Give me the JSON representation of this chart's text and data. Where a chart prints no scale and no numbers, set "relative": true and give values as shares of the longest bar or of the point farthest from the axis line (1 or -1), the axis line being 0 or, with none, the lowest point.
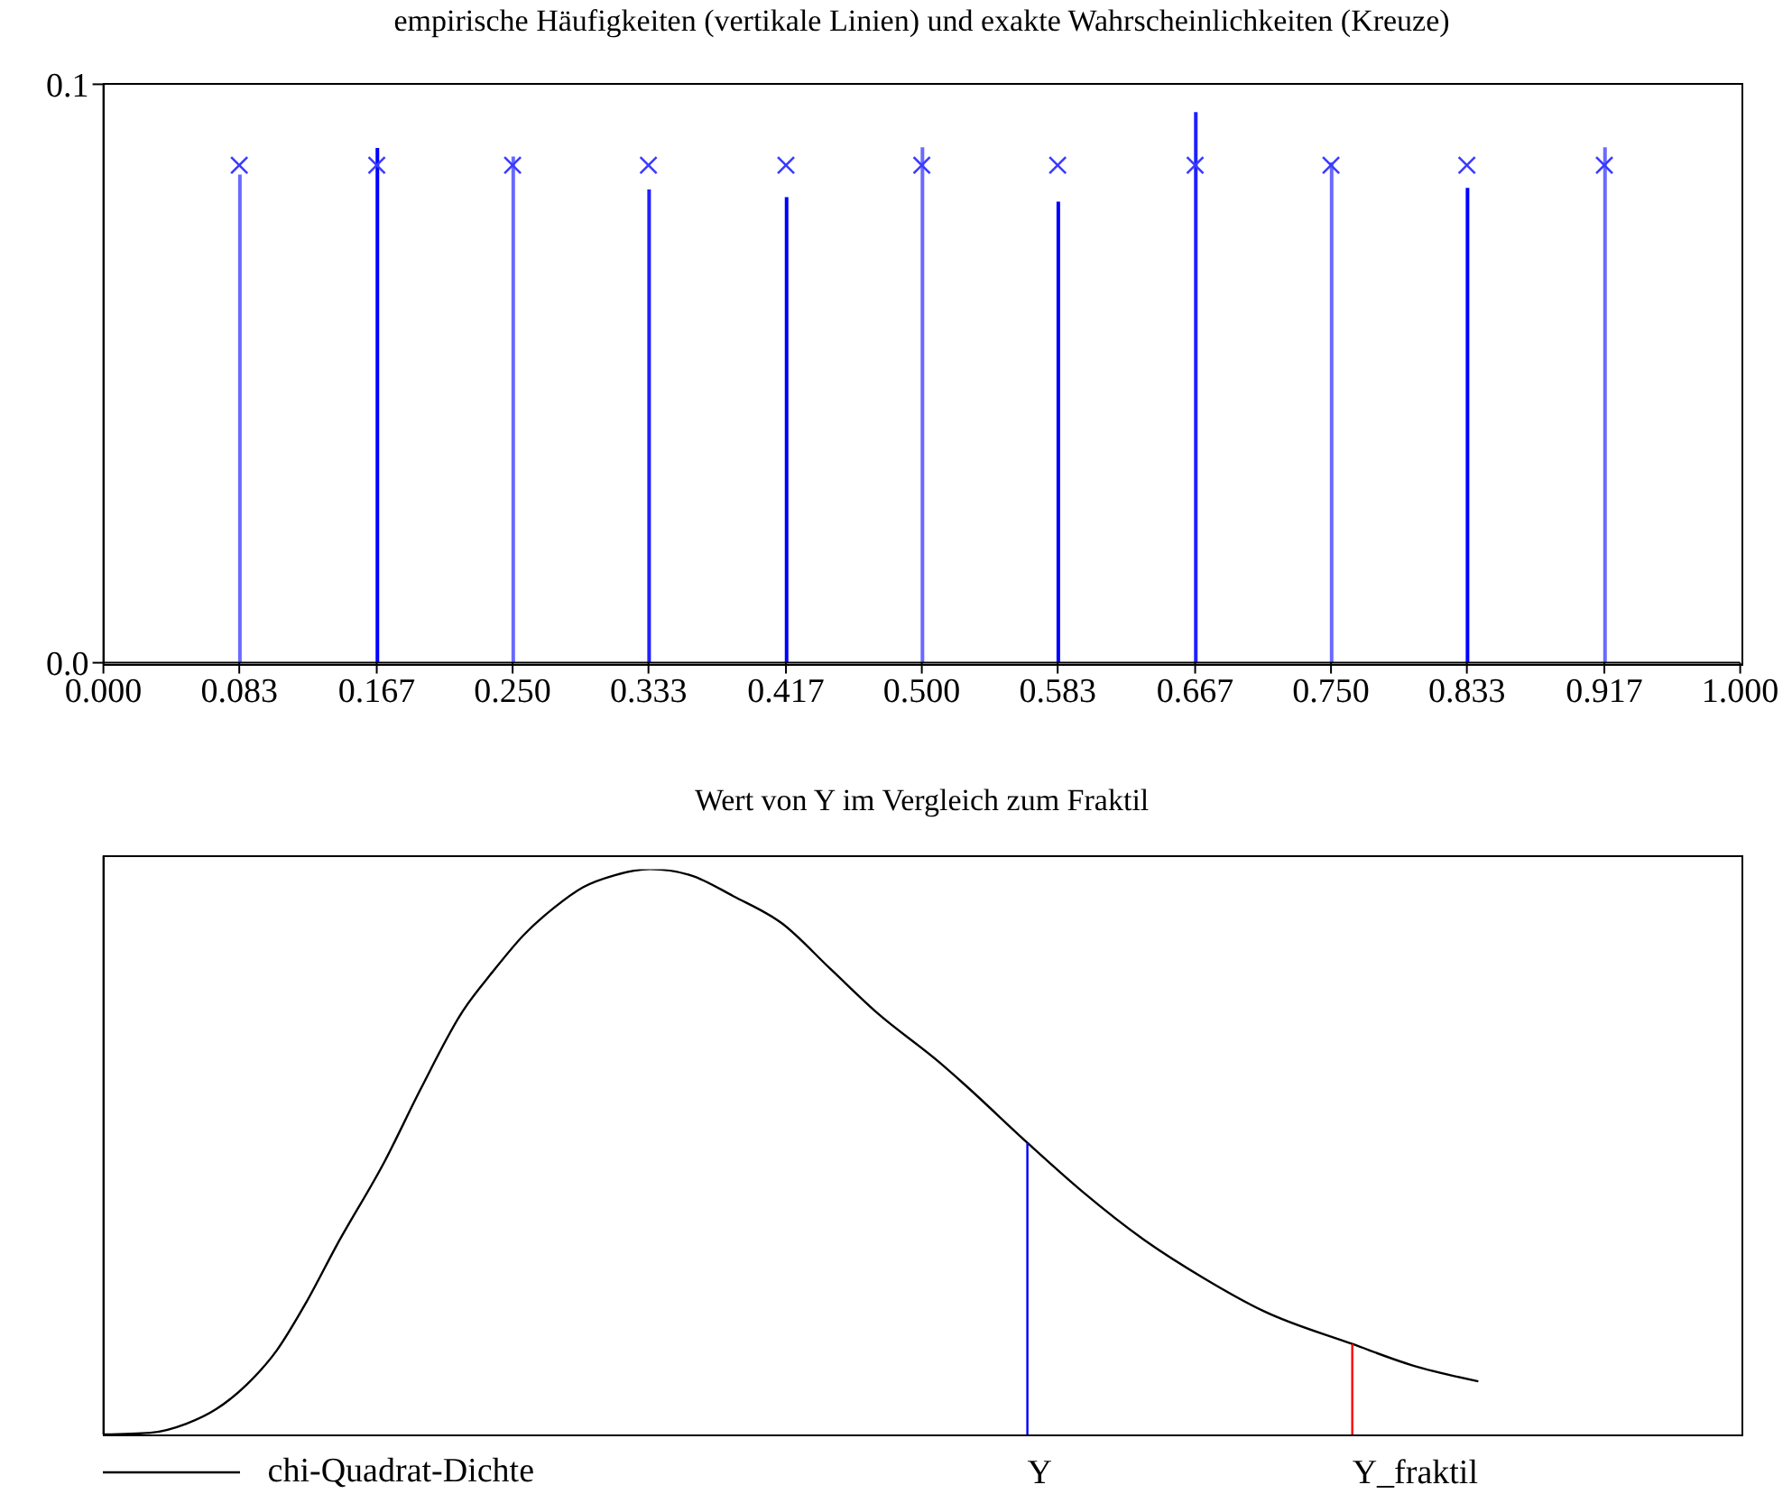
{
  "chart_data": [
    {
      "type": "bar",
      "title": "empirische Häufigkeiten (vertikale Linien) und exakte Wahrscheinlichkeiten (Kreuze)",
      "x": [
        0.083,
        0.167,
        0.25,
        0.333,
        0.417,
        0.5,
        0.583,
        0.667,
        0.75,
        0.833,
        0.917
      ],
      "series": [
        {
          "colors": [
            "#6a6aff",
            "#0000ff",
            "#6a6aff",
            "#2020ff",
            "#0000ff",
            "#6a6aff",
            "#0000ff",
            "#2020ff",
            "#6a6aff",
            "#0000ff",
            "#6a6aff"
          ],
          "values": [
            0.0844,
            0.089,
            0.0875,
            0.0818,
            0.0805,
            0.0891,
            0.0797,
            0.0952,
            0.0865,
            0.0821,
            0.0891
          ]
        },
        {
          "type": "scatter",
          "color": "#3a3aff",
          "marker": "cross",
          "values": [
            0.086,
            0.086,
            0.086,
            0.086,
            0.086,
            0.086,
            0.086,
            0.086,
            0.086,
            0.086,
            0.086
          ]
        }
      ],
      "xlim": [
        0,
        1
      ],
      "xticks": [
        {
          "value": 0,
          "label": "0.000"
        },
        {
          "value": 0.083,
          "label": "0.083"
        },
        {
          "value": 0.167,
          "label": "0.167"
        },
        {
          "value": 0.25,
          "label": "0.250"
        },
        {
          "value": 0.333,
          "label": "0.333"
        },
        {
          "value": 0.417,
          "label": "0.417"
        },
        {
          "value": 0.5,
          "label": "0.500"
        },
        {
          "value": 0.583,
          "label": "0.583"
        },
        {
          "value": 0.667,
          "label": "0.667"
        },
        {
          "value": 0.75,
          "label": "0.750"
        },
        {
          "value": 0.833,
          "label": "0.833"
        },
        {
          "value": 0.917,
          "label": "0.917"
        },
        {
          "value": 1,
          "label": "1.000"
        }
      ],
      "ylim": [
        0,
        0.1
      ],
      "yticks": [
        {
          "value": 0,
          "label": "0.0"
        },
        {
          "value": 0.1,
          "label": "0.1"
        }
      ]
    },
    {
      "type": "line",
      "title": "Wert von Y im Vergleich zum Fraktil",
      "relative": true,
      "xlim": [
        0,
        1
      ],
      "legend": "bottom left",
      "x": [
        0,
        0.0287,
        0.0507,
        0.069,
        0.0875,
        0.106,
        0.124,
        0.1426,
        0.172,
        0.194,
        0.2198,
        0.238,
        0.2566,
        0.275,
        0.293,
        0.312,
        0.334,
        0.359,
        0.385,
        0.4146,
        0.444,
        0.473,
        0.51,
        0.525,
        0.5645,
        0.598,
        0.635,
        0.672,
        0.709,
        0.763,
        0.8,
        0.84
      ],
      "series": [
        {
          "name": "chi-Quadrat-Dichte",
          "color": "#000000",
          "values": [
            0,
            0.003,
            0.019,
            0.045,
            0.088,
            0.149,
            0.234,
            0.335,
            0.484,
            0.612,
            0.75,
            0.819,
            0.883,
            0.931,
            0.968,
            0.989,
            1,
            0.989,
            0.952,
            0.904,
            0.824,
            0.745,
            0.66,
            0.622,
            0.516,
            0.43,
            0.346,
            0.277,
            0.218,
            0.16,
            0.122,
            0.094
          ]
        }
      ],
      "ref_lines": [
        {
          "axis": "x",
          "value": 0.5645,
          "label": "Y",
          "color": "#0000ff"
        },
        {
          "axis": "x",
          "value": 0.763,
          "label": "Y_fraktil",
          "color": "#ff0000"
        }
      ]
    }
  ]
}
